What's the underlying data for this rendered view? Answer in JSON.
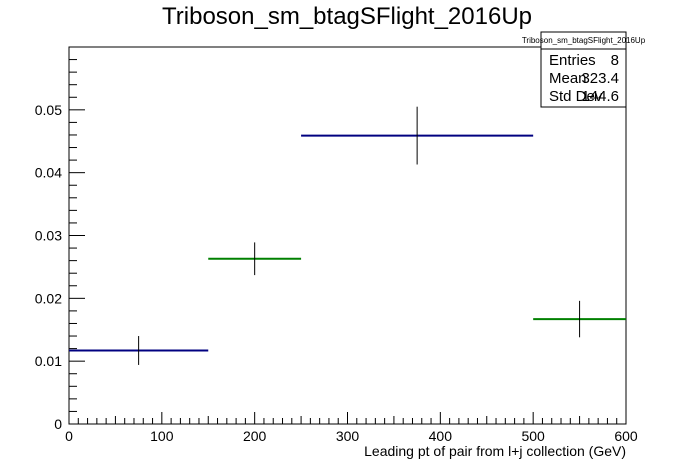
{
  "chart_data": {
    "type": "histogram",
    "title": "Triboson_sm_btagSFlight_2016Up",
    "xlabel": "Leading pt of pair from l+j collection (GeV)",
    "ylabel": "",
    "xlim": [
      0,
      600
    ],
    "ylim": [
      0,
      0.06
    ],
    "x_ticks": [
      "0",
      "100",
      "200",
      "300",
      "400",
      "500",
      "600"
    ],
    "y_ticks": [
      "0",
      "0.01",
      "0.02",
      "0.03",
      "0.04",
      "0.05"
    ],
    "grid": false,
    "bins": [
      {
        "x_low": 0,
        "x_high": 150,
        "y": 0.0117,
        "err": 0.0023,
        "color": "#000080"
      },
      {
        "x_low": 150,
        "x_high": 250,
        "y": 0.0263,
        "err": 0.0026,
        "color": "#008000"
      },
      {
        "x_low": 250,
        "x_high": 500,
        "y": 0.0459,
        "err": 0.0046,
        "color": "#000080"
      },
      {
        "x_low": 500,
        "x_high": 600,
        "y": 0.0167,
        "err": 0.0029,
        "color": "#008000"
      }
    ],
    "stats_box": {
      "title": "Triboson_sm_btagSFlight_2016Up",
      "rows": [
        {
          "label": "Entries",
          "value": "8"
        },
        {
          "label": "Mean",
          "value": "323.4"
        },
        {
          "label": "Std Dev",
          "value": "144.6"
        }
      ]
    }
  }
}
